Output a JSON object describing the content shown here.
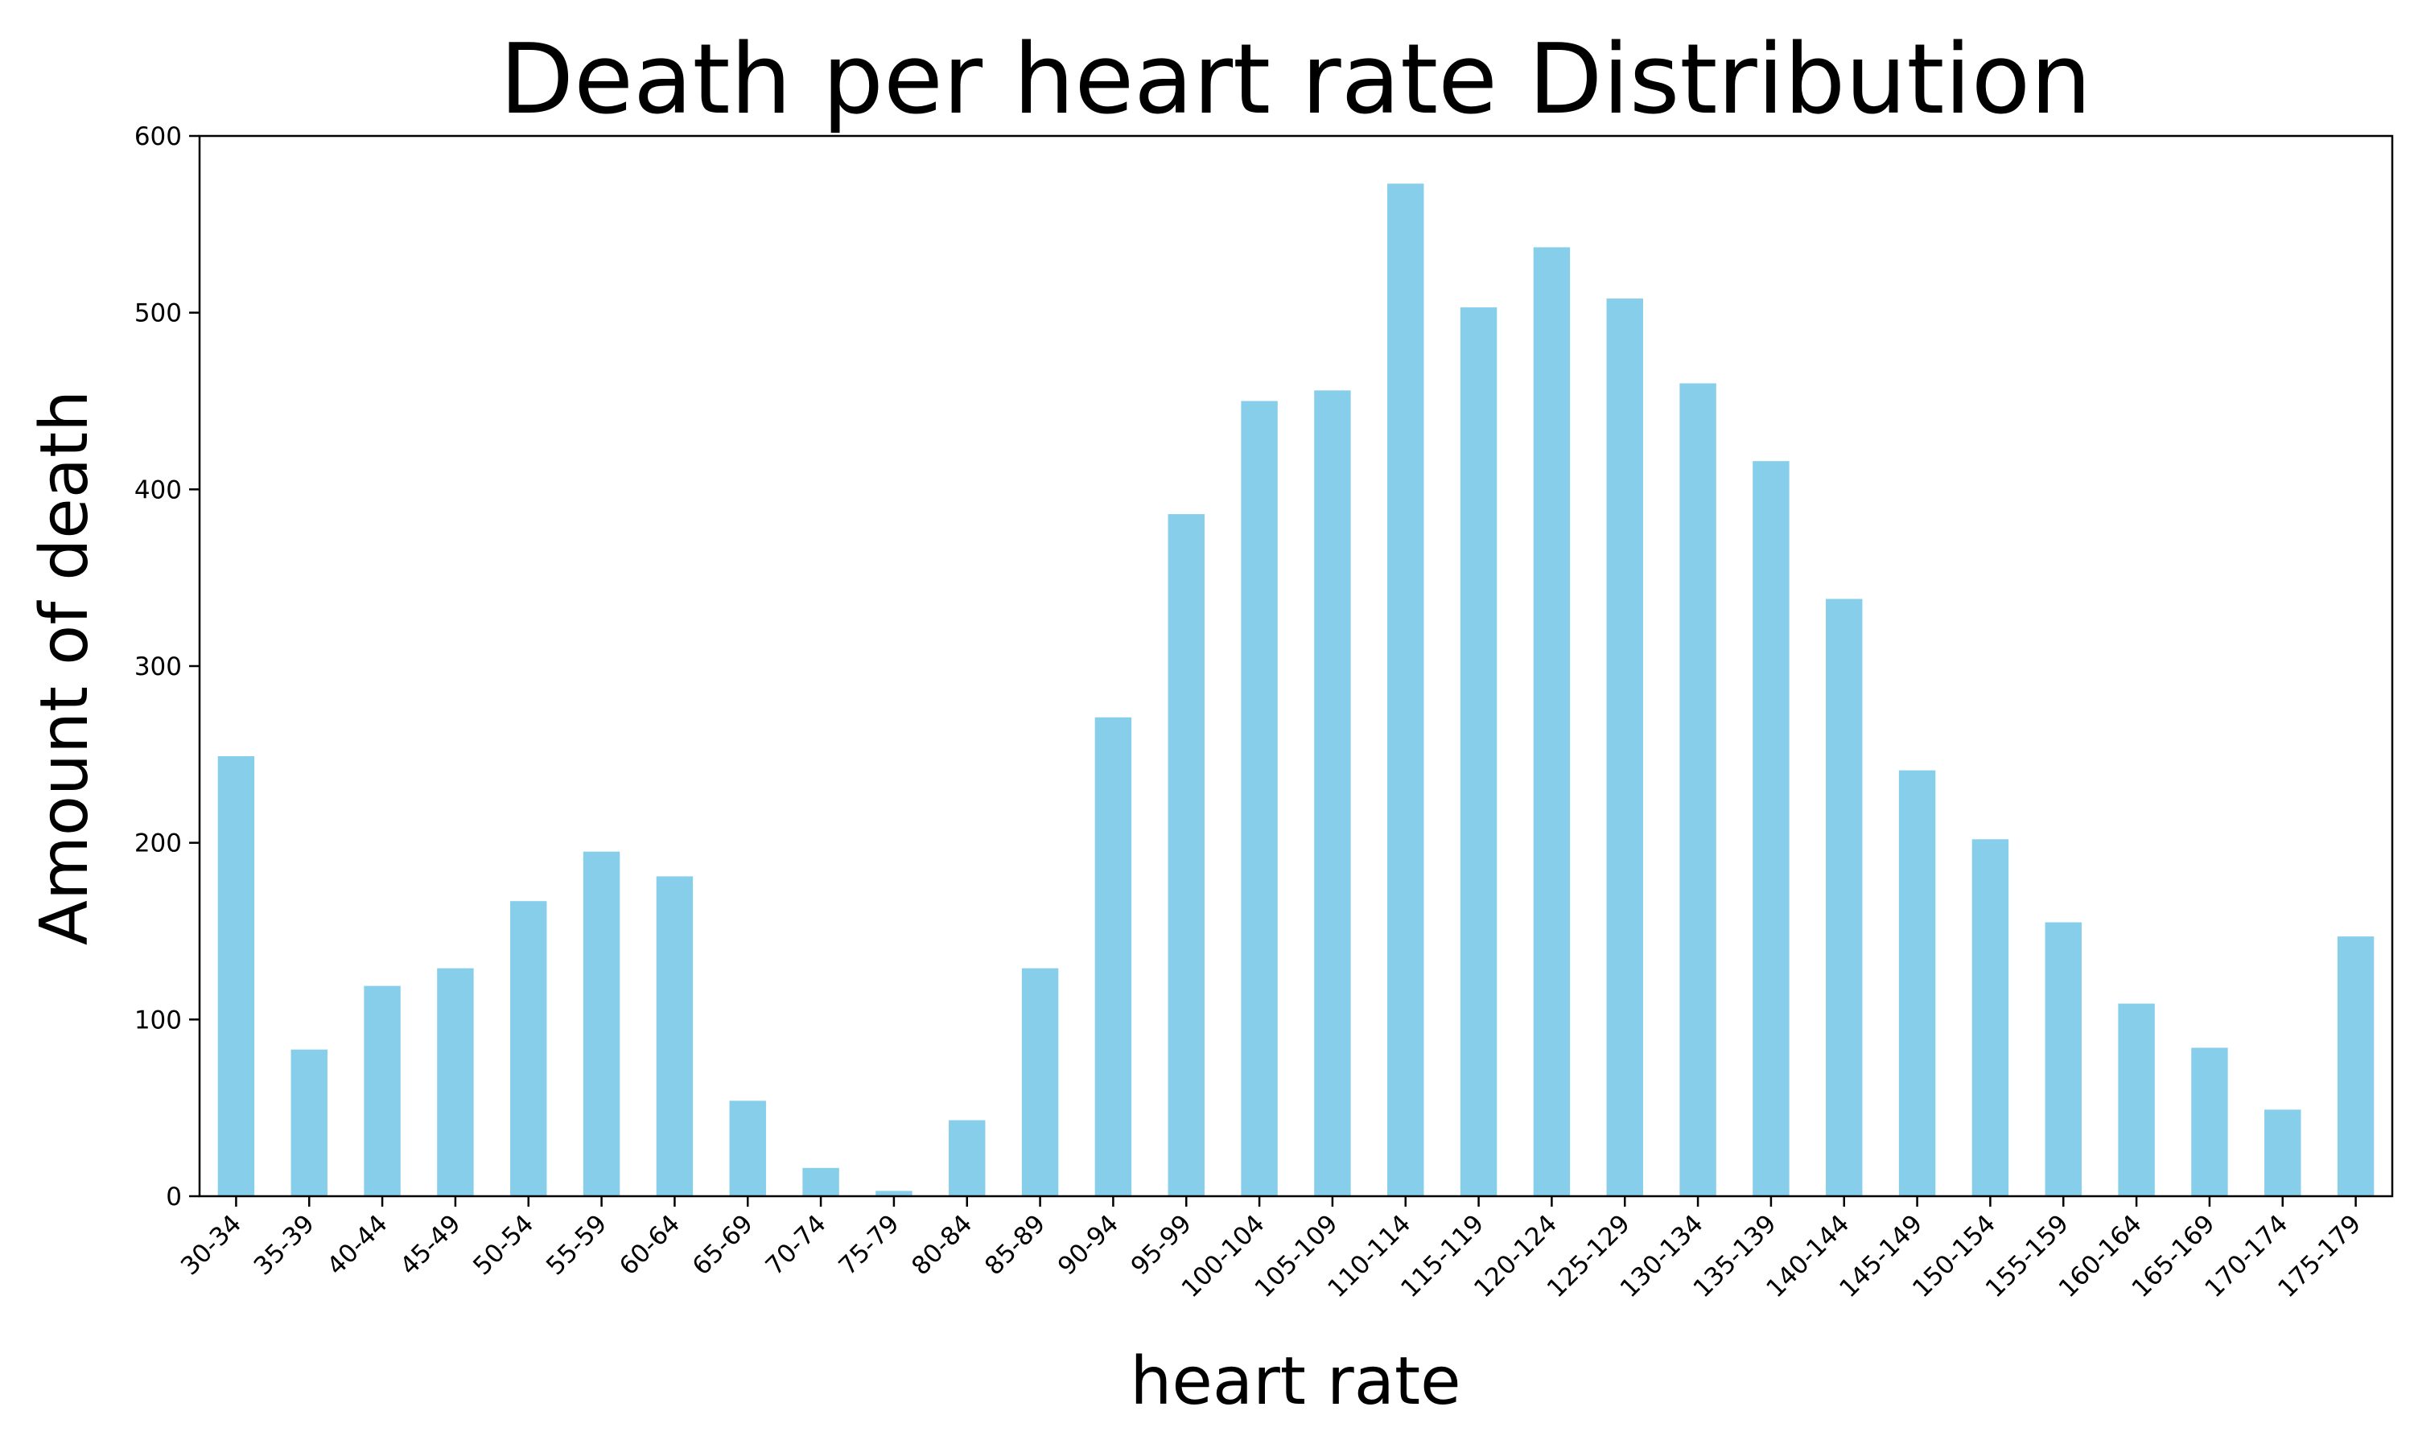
{
  "chart_data": {
    "type": "bar",
    "title": "Death per heart rate Distribution",
    "xlabel": "heart rate",
    "ylabel": "Amount of death",
    "ylim": [
      0,
      600
    ],
    "yticks": [
      0,
      100,
      200,
      300,
      400,
      500,
      600
    ],
    "grid": false,
    "bar_color": "#87CEEB",
    "categories": [
      "30-34",
      "35-39",
      "40-44",
      "45-49",
      "50-54",
      "55-59",
      "60-64",
      "65-69",
      "70-74",
      "75-79",
      "80-84",
      "85-89",
      "90-94",
      "95-99",
      "100-104",
      "105-109",
      "110-114",
      "115-119",
      "120-124",
      "125-129",
      "130-134",
      "135-139",
      "140-144",
      "145-149",
      "150-154",
      "155-159",
      "160-164",
      "165-169",
      "170-174",
      "175-179"
    ],
    "values": [
      249,
      83,
      119,
      129,
      167,
      195,
      181,
      54,
      16,
      3,
      43,
      129,
      271,
      386,
      450,
      456,
      573,
      503,
      537,
      508,
      460,
      416,
      338,
      241,
      202,
      155,
      109,
      84,
      49,
      147
    ]
  }
}
